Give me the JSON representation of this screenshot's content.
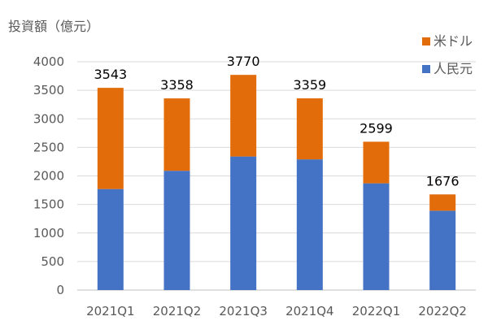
{
  "chart_data": {
    "type": "bar",
    "stacked": true,
    "ylabel": "投資額（億元）",
    "categories": [
      "2021Q1",
      "2021Q2",
      "2021Q3",
      "2021Q4",
      "2022Q1",
      "2022Q2"
    ],
    "series": [
      {
        "name": "人民元",
        "color": "#4472c4",
        "values": [
          1770,
          2090,
          2340,
          2290,
          1870,
          1390
        ]
      },
      {
        "name": "米ドル",
        "color": "#e36c0a",
        "values": [
          1773,
          1268,
          1430,
          1069,
          729,
          286
        ]
      }
    ],
    "totals": [
      3543,
      3358,
      3770,
      3359,
      2599,
      1676
    ],
    "ylim": [
      0,
      4000
    ],
    "yticks": [
      0,
      500,
      1000,
      1500,
      2000,
      2500,
      3000,
      3500,
      4000
    ],
    "grid": true,
    "legend_position": "top-right"
  }
}
